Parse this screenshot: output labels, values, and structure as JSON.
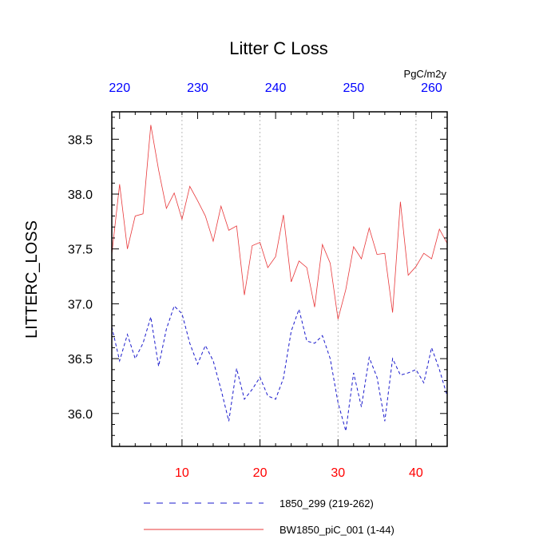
{
  "chart_data": {
    "type": "line",
    "title": "Litter C Loss",
    "ylabel": "LITTERC_LOSS",
    "units": "PgC/m2y",
    "xlim": [
      1,
      44
    ],
    "ylim": [
      35.7,
      38.75
    ],
    "x_bottom_ticks": [
      10,
      20,
      30,
      40
    ],
    "x_top_ticks": [
      220,
      230,
      240,
      250,
      260
    ],
    "x_top_offset": 218,
    "y_ticks": [
      36.0,
      36.5,
      37.0,
      37.5,
      38.0,
      38.5
    ],
    "y_tick_labels": [
      "36.0",
      "36.5",
      "37.0",
      "37.5",
      "38.0",
      "38.5"
    ],
    "grid": "vertical-dotted",
    "legend_position": "bottom",
    "colors": {
      "series_red": "#e8383a",
      "series_blue": "#1a1acc",
      "bottom_ticks": "#ff0000",
      "top_ticks": "#0000ff",
      "grid": "#aaaaaa"
    },
    "x": [
      1,
      2,
      3,
      4,
      5,
      6,
      7,
      8,
      9,
      10,
      11,
      12,
      13,
      14,
      15,
      16,
      17,
      18,
      19,
      20,
      21,
      22,
      23,
      24,
      25,
      26,
      27,
      28,
      29,
      30,
      31,
      32,
      33,
      34,
      35,
      36,
      37,
      38,
      39,
      40,
      41,
      42,
      43,
      44
    ],
    "series": [
      {
        "name": "BW1850_piC_001 (1-44)",
        "color": "#e8383a",
        "style": "solid",
        "values": [
          37.45,
          38.09,
          37.5,
          37.8,
          37.82,
          38.63,
          38.22,
          37.87,
          38.01,
          37.77,
          38.07,
          37.94,
          37.8,
          37.57,
          37.89,
          37.67,
          37.71,
          37.08,
          37.53,
          37.56,
          37.33,
          37.43,
          37.81,
          37.2,
          37.39,
          37.33,
          36.97,
          37.54,
          37.37,
          36.86,
          37.13,
          37.52,
          37.41,
          37.69,
          37.45,
          37.46,
          36.92,
          37.93,
          37.26,
          37.34,
          37.46,
          37.41,
          37.68,
          37.55
        ]
      },
      {
        "name": "1850_299 (219-262)",
        "color": "#1a1acc",
        "style": "dashed",
        "values": [
          36.79,
          36.48,
          36.72,
          36.5,
          36.64,
          36.88,
          36.43,
          36.77,
          36.98,
          36.91,
          36.64,
          36.45,
          36.62,
          36.48,
          36.22,
          35.93,
          36.41,
          36.13,
          36.22,
          36.33,
          36.16,
          36.13,
          36.32,
          36.75,
          36.95,
          36.66,
          36.64,
          36.71,
          36.5,
          36.1,
          35.84,
          36.37,
          36.06,
          36.51,
          36.33,
          35.93,
          36.5,
          36.35,
          36.37,
          36.4,
          36.28,
          36.6,
          36.4,
          36.16
        ]
      }
    ]
  }
}
